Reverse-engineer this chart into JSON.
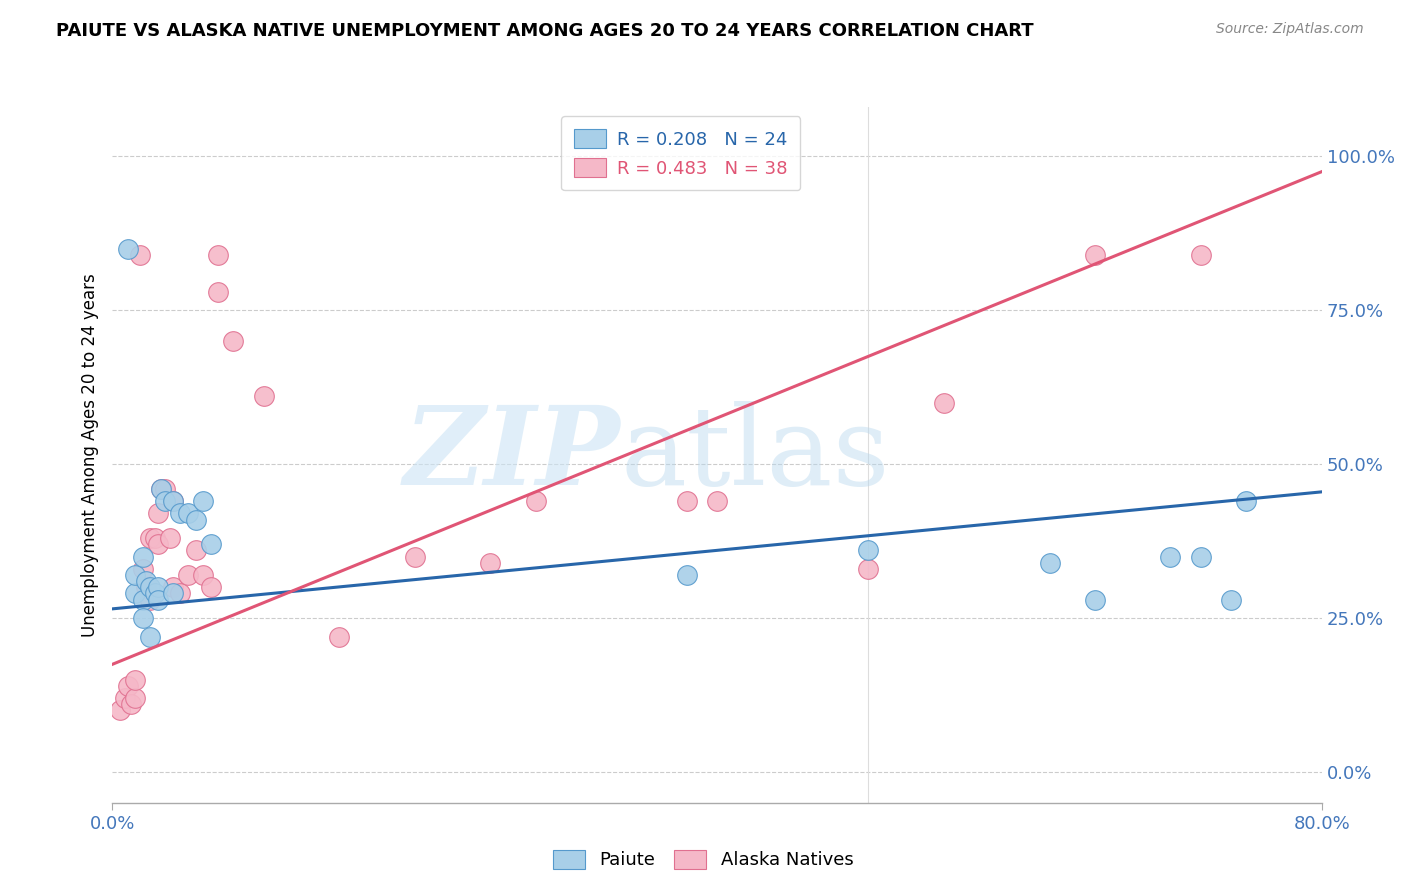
{
  "title": "PAIUTE VS ALASKA NATIVE UNEMPLOYMENT AMONG AGES 20 TO 24 YEARS CORRELATION CHART",
  "source": "Source: ZipAtlas.com",
  "ylabel": "Unemployment Among Ages 20 to 24 years",
  "ytick_labels": [
    "0.0%",
    "25.0%",
    "50.0%",
    "75.0%",
    "100.0%"
  ],
  "ytick_vals": [
    0.0,
    0.25,
    0.5,
    0.75,
    1.0
  ],
  "xmin": 0.0,
  "xmax": 0.8,
  "ymin": -0.05,
  "ymax": 1.08,
  "paiute_color": "#a8cfe8",
  "alaska_color": "#f5b8c8",
  "paiute_edge_color": "#5599cc",
  "alaska_edge_color": "#e07090",
  "paiute_line_color": "#2866aa",
  "alaska_line_color": "#e05575",
  "legend_text_blue": "#2866aa",
  "legend_text_pink": "#e05575",
  "xtick_color": "#4477bb",
  "ytick_color": "#4477bb",
  "paiute_line_x0": 0.0,
  "paiute_line_y0": 0.265,
  "paiute_line_x1": 0.8,
  "paiute_line_y1": 0.455,
  "alaska_line_x0": 0.0,
  "alaska_line_y0": 0.175,
  "alaska_line_x1": 0.8,
  "alaska_line_y1": 0.975,
  "paiute_x": [
    0.01,
    0.015,
    0.015,
    0.02,
    0.02,
    0.02,
    0.022,
    0.025,
    0.025,
    0.028,
    0.03,
    0.03,
    0.032,
    0.035,
    0.04,
    0.04,
    0.045,
    0.05,
    0.055,
    0.06,
    0.065,
    0.38,
    0.5,
    0.62,
    0.65,
    0.7,
    0.72,
    0.74,
    0.75
  ],
  "paiute_y": [
    0.85,
    0.29,
    0.32,
    0.35,
    0.28,
    0.25,
    0.31,
    0.3,
    0.22,
    0.29,
    0.3,
    0.28,
    0.46,
    0.44,
    0.44,
    0.29,
    0.42,
    0.42,
    0.41,
    0.44,
    0.37,
    0.32,
    0.36,
    0.34,
    0.28,
    0.35,
    0.35,
    0.28,
    0.44
  ],
  "alaska_x": [
    0.005,
    0.008,
    0.01,
    0.012,
    0.015,
    0.015,
    0.018,
    0.02,
    0.022,
    0.025,
    0.025,
    0.028,
    0.03,
    0.03,
    0.032,
    0.035,
    0.038,
    0.04,
    0.04,
    0.045,
    0.05,
    0.055,
    0.06,
    0.065,
    0.07,
    0.1,
    0.15,
    0.2,
    0.25,
    0.28,
    0.38,
    0.4,
    0.5,
    0.55,
    0.65,
    0.72,
    0.07,
    0.08
  ],
  "alaska_y": [
    0.1,
    0.12,
    0.14,
    0.11,
    0.12,
    0.15,
    0.84,
    0.33,
    0.3,
    0.28,
    0.38,
    0.38,
    0.42,
    0.37,
    0.46,
    0.46,
    0.38,
    0.44,
    0.3,
    0.29,
    0.32,
    0.36,
    0.32,
    0.3,
    0.78,
    0.61,
    0.22,
    0.35,
    0.34,
    0.44,
    0.44,
    0.44,
    0.33,
    0.6,
    0.84,
    0.84,
    0.84,
    0.7
  ]
}
